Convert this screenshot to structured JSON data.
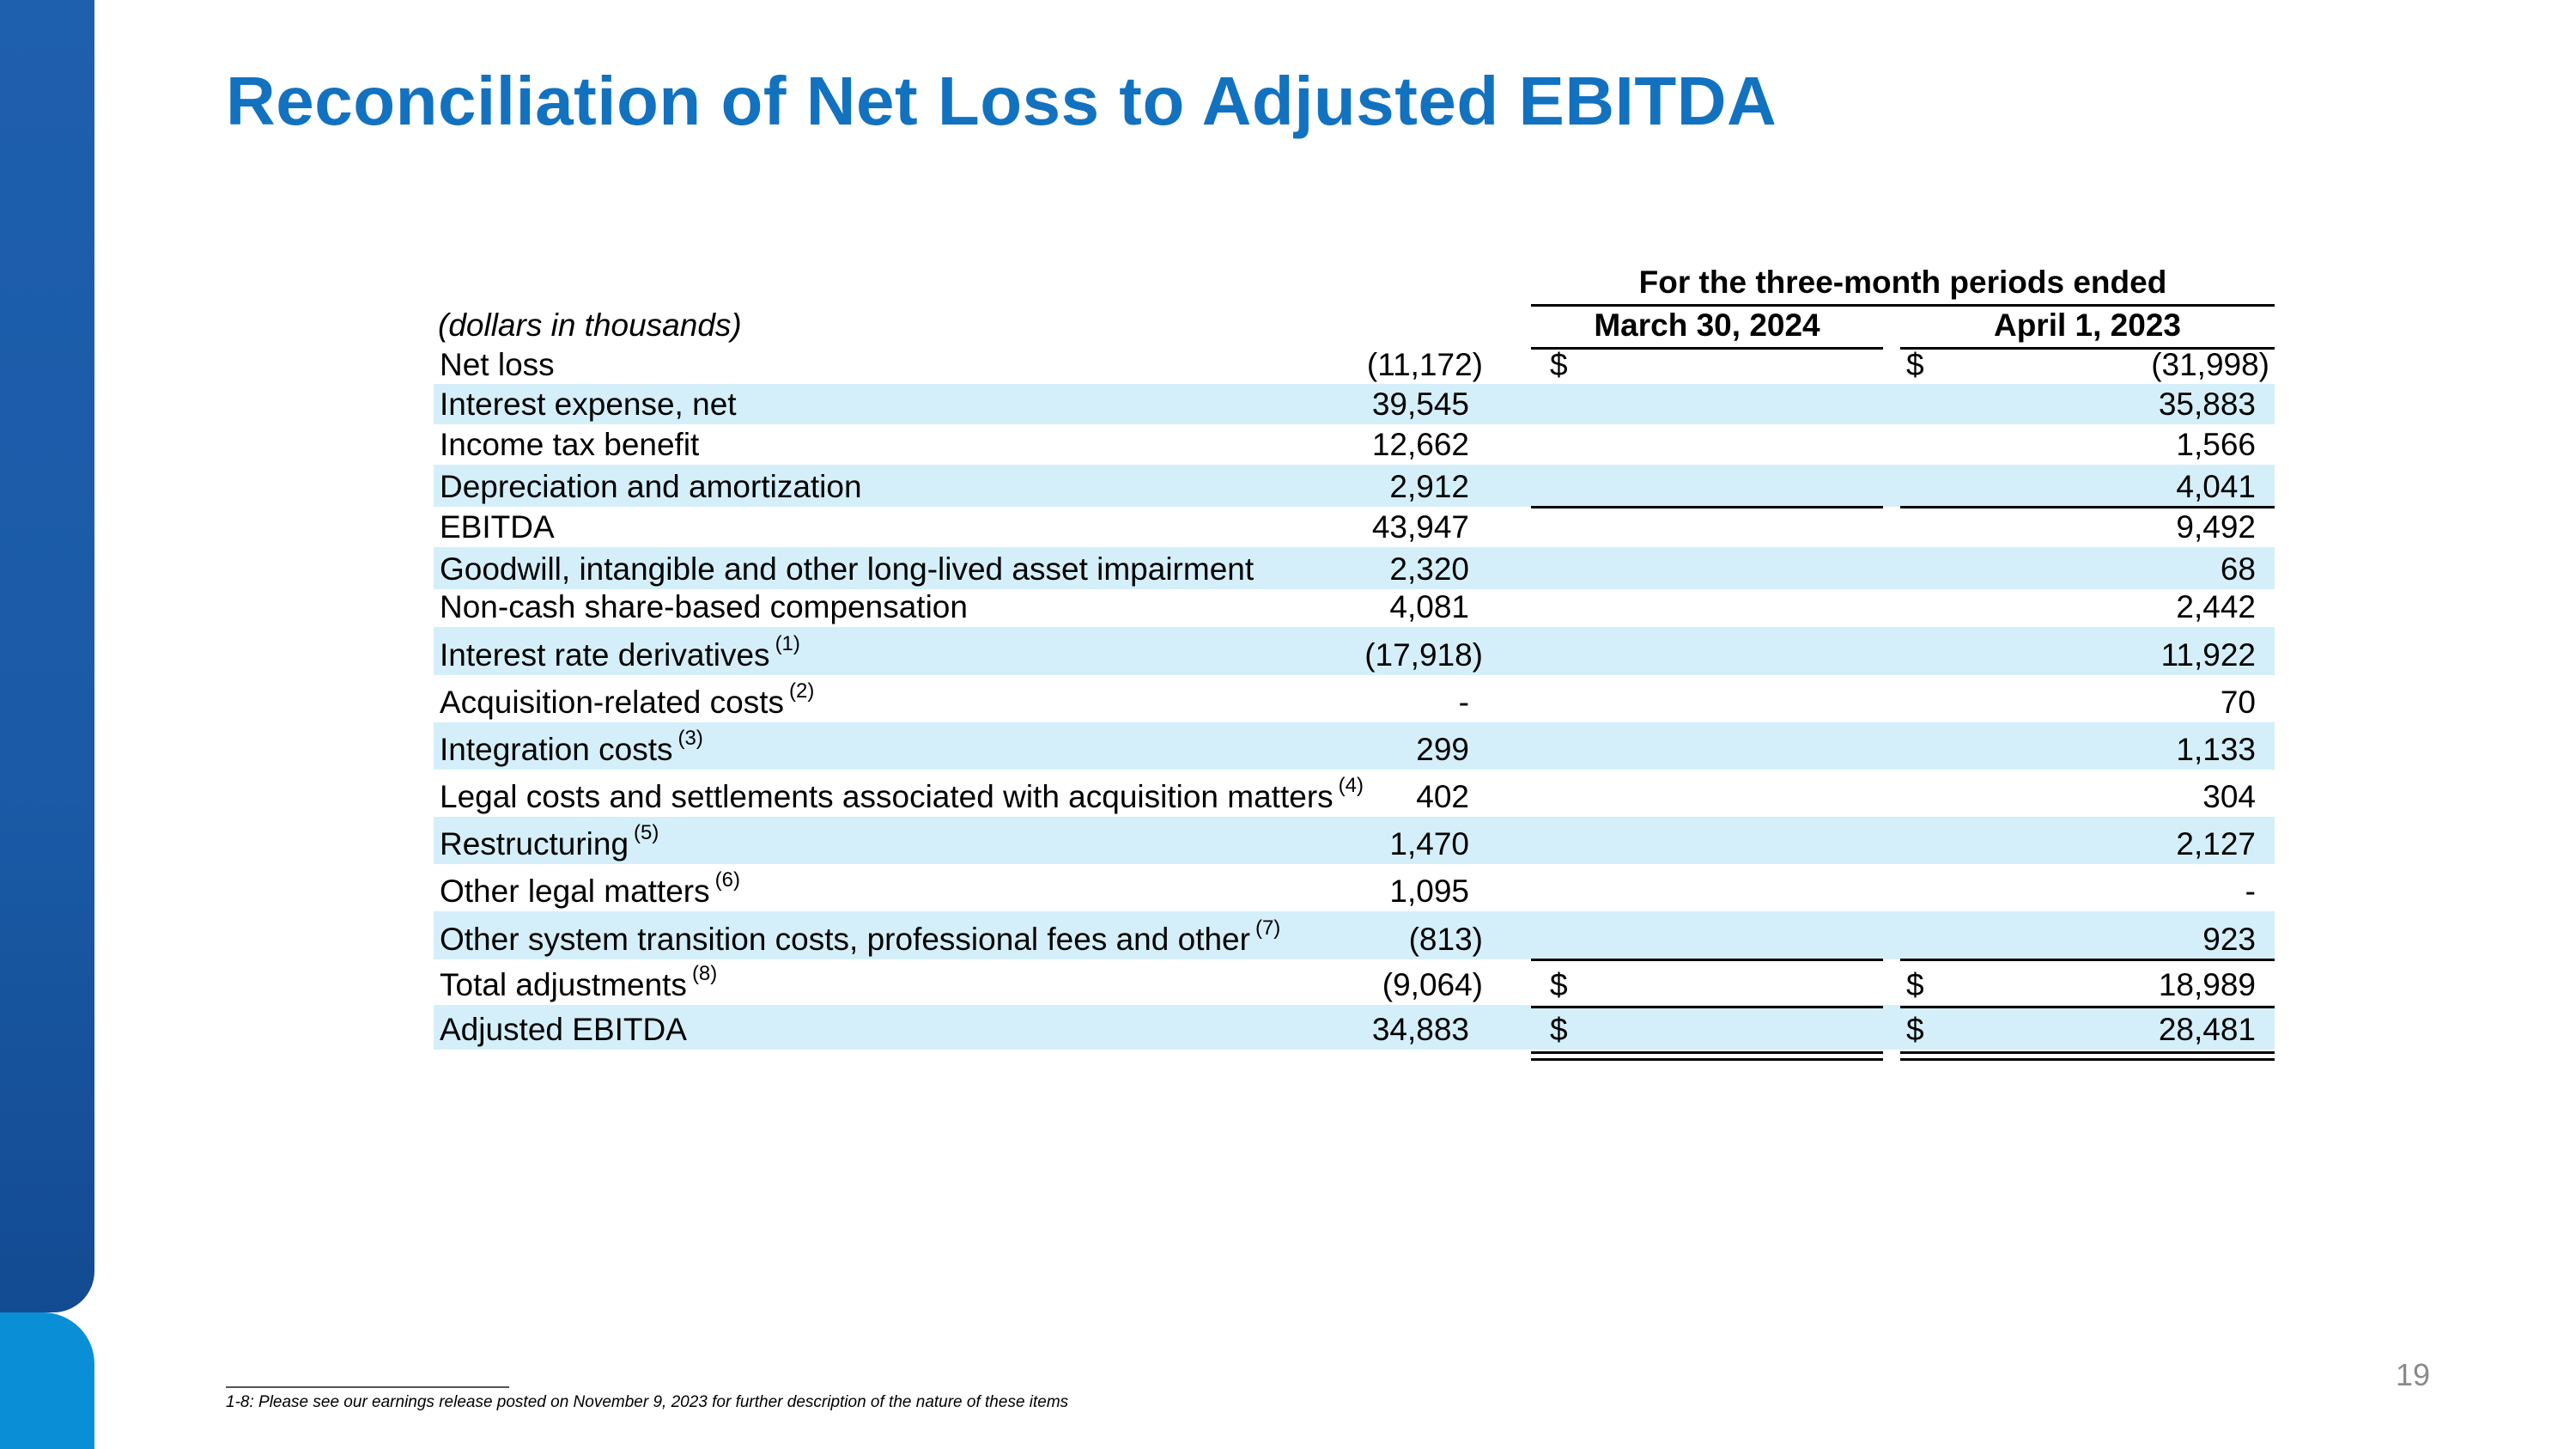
{
  "title": "Reconciliation of Net Loss to Adjusted EBITDA",
  "table": {
    "period_header": "For the three-month periods ended",
    "units_label": "(dollars in thousands)",
    "columns": [
      "March 30, 2024",
      "April 1, 2023"
    ],
    "rows": [
      {
        "label": "Net loss",
        "sup": "",
        "dollar": true,
        "v1": "(11,172)",
        "v2": "(31,998)"
      },
      {
        "label": "Interest expense, net",
        "sup": "",
        "dollar": false,
        "v1": "39,545",
        "v2": "35,883"
      },
      {
        "label": "Income tax benefit",
        "sup": "",
        "dollar": false,
        "v1": "12,662",
        "v2": "1,566"
      },
      {
        "label": "Depreciation and amortization",
        "sup": "",
        "dollar": false,
        "v1": "2,912",
        "v2": "4,041"
      },
      {
        "label": "EBITDA",
        "sup": "",
        "dollar": false,
        "v1": "43,947",
        "v2": "9,492"
      },
      {
        "label": "Goodwill, intangible and other long-lived asset impairment",
        "sup": "",
        "dollar": false,
        "v1": "2,320",
        "v2": "68"
      },
      {
        "label": "Non-cash share-based compensation",
        "sup": "",
        "dollar": false,
        "v1": "4,081",
        "v2": "2,442"
      },
      {
        "label": "Interest rate derivatives",
        "sup": "(1)",
        "dollar": false,
        "v1": "(17,918)",
        "v2": "11,922"
      },
      {
        "label": "Acquisition-related costs",
        "sup": "(2)",
        "dollar": false,
        "v1": "-",
        "v2": "70"
      },
      {
        "label": "Integration costs",
        "sup": "(3)",
        "dollar": false,
        "v1": "299",
        "v2": "1,133"
      },
      {
        "label": "Legal costs and settlements associated with acquisition matters",
        "sup": "(4)",
        "dollar": false,
        "v1": "402",
        "v2": "304"
      },
      {
        "label": "Restructuring",
        "sup": "(5)",
        "dollar": false,
        "v1": "1,470",
        "v2": "2,127"
      },
      {
        "label": "Other legal matters",
        "sup": "(6)",
        "dollar": false,
        "v1": "1,095",
        "v2": "-"
      },
      {
        "label": "Other system transition costs, professional fees and other",
        "sup": "(7)",
        "dollar": false,
        "v1": "(813)",
        "v2": "923"
      },
      {
        "label": "Total adjustments",
        "sup": "(8)",
        "dollar": true,
        "v1": "(9,064)",
        "v2": "18,989"
      },
      {
        "label": "Adjusted EBITDA",
        "sup": "",
        "dollar": true,
        "v1": "34,883",
        "v2": "28,481"
      }
    ],
    "currency_symbol": "$"
  },
  "footnote": "1-8: Please see our earnings release posted on November 9, 2023 for further description of the nature of these items",
  "page_number": "19",
  "colors": {
    "title": "#1272c0",
    "row_shade": "#d4eff9",
    "sidebar": "#1a5aa6",
    "sidebar_accent": "#0a8fd6"
  }
}
